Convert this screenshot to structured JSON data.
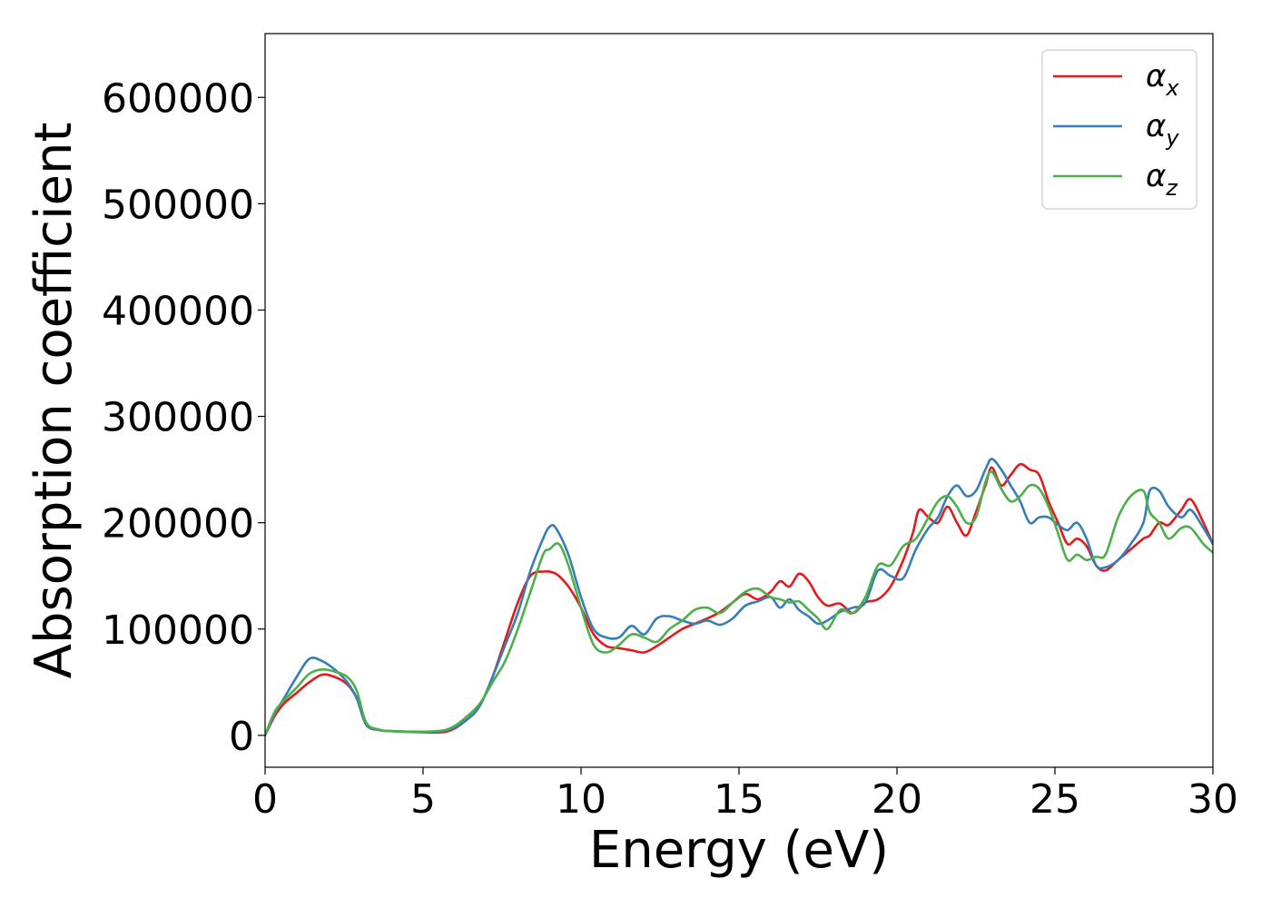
{
  "chart_data": {
    "type": "line",
    "title": "",
    "xlabel": "Energy (eV)",
    "ylabel": "Absorption coefficient",
    "xlim": [
      0,
      30
    ],
    "ylim": [
      -30000,
      660000
    ],
    "xticks": [
      0,
      5,
      10,
      15,
      20,
      25,
      30
    ],
    "yticks": [
      0,
      100000,
      200000,
      300000,
      400000,
      500000,
      600000
    ],
    "grid": false,
    "legend_position": "top-right",
    "series": [
      {
        "name": "α",
        "subscript": "x",
        "color": "#e41a1c",
        "x": [
          0,
          0.3,
          0.6,
          1.0,
          1.4,
          1.8,
          2.2,
          2.6,
          2.9,
          3.2,
          3.6,
          4.0,
          5.0,
          5.8,
          6.4,
          6.8,
          7.2,
          7.6,
          8.0,
          8.4,
          8.8,
          9.2,
          9.6,
          10.0,
          10.4,
          10.8,
          11.2,
          11.6,
          12.0,
          12.4,
          12.8,
          13.2,
          13.6,
          14.0,
          14.4,
          14.8,
          15.2,
          15.6,
          16.0,
          16.3,
          16.6,
          16.9,
          17.2,
          17.5,
          17.8,
          18.2,
          18.6,
          19.0,
          19.4,
          19.8,
          20.2,
          20.5,
          20.7,
          21.0,
          21.3,
          21.6,
          21.9,
          22.2,
          22.5,
          22.8,
          23.0,
          23.3,
          23.6,
          23.9,
          24.2,
          24.5,
          24.8,
          25.1,
          25.4,
          25.7,
          26.0,
          26.3,
          26.6,
          27.0,
          27.4,
          27.8,
          28.0,
          28.3,
          28.6,
          29.0,
          29.3,
          29.7,
          30.0
        ],
        "y": [
          0,
          18000,
          30000,
          40000,
          50000,
          57000,
          55000,
          48000,
          35000,
          10000,
          5000,
          4000,
          3000,
          4000,
          15000,
          28000,
          55000,
          90000,
          125000,
          150000,
          154000,
          152000,
          140000,
          120000,
          95000,
          84000,
          82000,
          80000,
          78000,
          84000,
          92000,
          100000,
          105000,
          110000,
          116000,
          125000,
          133000,
          128000,
          135000,
          145000,
          140000,
          152000,
          145000,
          130000,
          122000,
          124000,
          115000,
          125000,
          128000,
          140000,
          165000,
          190000,
          212000,
          205000,
          200000,
          215000,
          200000,
          188000,
          210000,
          235000,
          252000,
          235000,
          245000,
          255000,
          250000,
          245000,
          220000,
          200000,
          180000,
          185000,
          178000,
          160000,
          155000,
          165000,
          175000,
          185000,
          188000,
          200000,
          198000,
          212000,
          222000,
          200000,
          180000
        ]
      },
      {
        "name": "α",
        "subscript": "y",
        "color": "#377eb8",
        "x": [
          0,
          0.3,
          0.6,
          1.0,
          1.4,
          1.8,
          2.2,
          2.6,
          2.9,
          3.2,
          3.6,
          4.0,
          5.0,
          5.8,
          6.4,
          6.8,
          7.2,
          7.6,
          8.0,
          8.4,
          8.8,
          9.0,
          9.2,
          9.6,
          10.0,
          10.4,
          10.8,
          11.2,
          11.6,
          12.0,
          12.4,
          12.8,
          13.2,
          13.6,
          14.0,
          14.4,
          14.8,
          15.2,
          15.6,
          16.0,
          16.3,
          16.6,
          16.9,
          17.2,
          17.5,
          17.8,
          18.2,
          18.6,
          19.0,
          19.4,
          19.8,
          20.2,
          20.6,
          21.0,
          21.3,
          21.6,
          21.9,
          22.2,
          22.5,
          22.8,
          23.0,
          23.3,
          23.6,
          23.9,
          24.2,
          24.5,
          24.8,
          25.1,
          25.4,
          25.7,
          26.0,
          26.3,
          26.6,
          27.0,
          27.4,
          27.8,
          28.0,
          28.3,
          28.6,
          29.0,
          29.3,
          29.7,
          30.0
        ],
        "y": [
          0,
          20000,
          35000,
          55000,
          72000,
          70000,
          62000,
          50000,
          35000,
          10000,
          5000,
          4000,
          3500,
          5000,
          15000,
          28000,
          55000,
          85000,
          115000,
          155000,
          185000,
          196000,
          195000,
          170000,
          130000,
          100000,
          92000,
          92000,
          103000,
          95000,
          110000,
          112000,
          108000,
          105000,
          108000,
          104000,
          110000,
          122000,
          126000,
          130000,
          120000,
          128000,
          118000,
          112000,
          105000,
          108000,
          116000,
          120000,
          125000,
          155000,
          150000,
          148000,
          175000,
          195000,
          205000,
          225000,
          235000,
          225000,
          230000,
          250000,
          260000,
          250000,
          235000,
          220000,
          200000,
          205000,
          205000,
          198000,
          193000,
          200000,
          185000,
          160000,
          158000,
          165000,
          180000,
          200000,
          230000,
          230000,
          215000,
          205000,
          212000,
          195000,
          180000
        ]
      },
      {
        "name": "α",
        "subscript": "z",
        "color": "#4daf4a",
        "x": [
          0,
          0.3,
          0.6,
          1.0,
          1.4,
          1.8,
          2.2,
          2.6,
          2.9,
          3.2,
          3.6,
          4.0,
          5.0,
          5.8,
          6.4,
          6.8,
          7.2,
          7.6,
          8.0,
          8.4,
          8.8,
          9.0,
          9.3,
          9.6,
          10.0,
          10.4,
          10.8,
          11.2,
          11.6,
          12.0,
          12.4,
          12.8,
          13.2,
          13.6,
          14.0,
          14.4,
          14.8,
          15.2,
          15.6,
          16.0,
          16.3,
          16.6,
          16.9,
          17.2,
          17.5,
          17.8,
          18.2,
          18.6,
          19.0,
          19.4,
          19.8,
          20.2,
          20.6,
          21.0,
          21.3,
          21.6,
          21.9,
          22.2,
          22.5,
          22.8,
          23.0,
          23.3,
          23.6,
          23.9,
          24.2,
          24.5,
          24.8,
          25.1,
          25.4,
          25.7,
          26.0,
          26.3,
          26.6,
          27.0,
          27.4,
          27.8,
          28.0,
          28.3,
          28.6,
          29.0,
          29.3,
          29.7,
          30.0
        ],
        "y": [
          0,
          22000,
          33000,
          45000,
          58000,
          62000,
          60000,
          55000,
          42000,
          12000,
          5500,
          4000,
          3500,
          6000,
          18000,
          30000,
          50000,
          70000,
          100000,
          135000,
          170000,
          175000,
          180000,
          160000,
          120000,
          85000,
          78000,
          85000,
          95000,
          92000,
          88000,
          100000,
          108000,
          118000,
          120000,
          115000,
          125000,
          135000,
          138000,
          130000,
          128000,
          125000,
          126000,
          118000,
          110000,
          100000,
          118000,
          115000,
          130000,
          160000,
          160000,
          178000,
          185000,
          205000,
          220000,
          225000,
          215000,
          200000,
          205000,
          238000,
          248000,
          232000,
          220000,
          225000,
          235000,
          232000,
          215000,
          190000,
          165000,
          170000,
          165000,
          168000,
          170000,
          205000,
          225000,
          230000,
          210000,
          200000,
          185000,
          195000,
          195000,
          180000,
          172000
        ]
      }
    ]
  }
}
